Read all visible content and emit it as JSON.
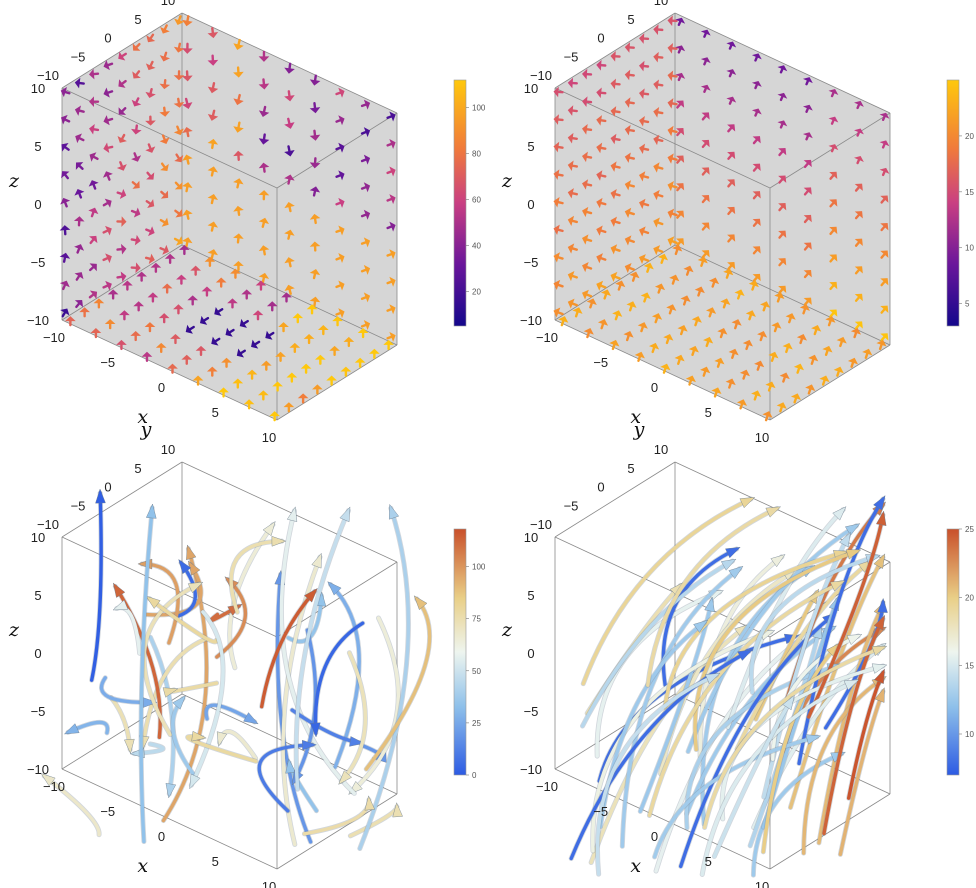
{
  "chart_data": [
    {
      "type": "vector-field-3d",
      "title": "",
      "xlabel": "x",
      "ylabel": "y",
      "zlabel": "z",
      "xlim": [
        -10,
        10
      ],
      "ylim": [
        -10,
        10
      ],
      "zlim": [
        -10,
        10
      ],
      "x_ticks": [
        "−10",
        "−5",
        "0",
        "5",
        "10"
      ],
      "y_ticks": [
        "−10",
        "−5",
        "0",
        "5",
        "10"
      ],
      "z_ticks": [
        "10",
        "5",
        "0",
        "−5",
        "−10"
      ],
      "slice_planes": [
        "x=-10 wall",
        "y=10 wall",
        "z=-10 floor"
      ],
      "colormap": "plasma (purple to yellow)",
      "colorbar_range": [
        5,
        112
      ],
      "colorbar_ticks": [
        "20",
        "40",
        "60",
        "80",
        "100"
      ],
      "colors": {
        "low": "#1c0b8c",
        "mid": "#c93f82",
        "high": "#ffc20a"
      }
    },
    {
      "type": "vector-field-3d",
      "title": "",
      "xlabel": "x",
      "ylabel": "y",
      "zlabel": "z",
      "xlim": [
        -10,
        10
      ],
      "ylim": [
        -10,
        10
      ],
      "zlim": [
        -10,
        10
      ],
      "x_ticks": [
        "−10",
        "−5",
        "0",
        "5",
        "10"
      ],
      "y_ticks": [
        "−10",
        "−5",
        "0",
        "5",
        "10"
      ],
      "z_ticks": [
        "10",
        "5",
        "0",
        "−5",
        "−10"
      ],
      "slice_planes": [
        "x=-10 wall",
        "y=10 wall",
        "z=-10 floor"
      ],
      "colormap": "plasma (purple to yellow)",
      "colorbar_range": [
        3,
        25
      ],
      "colorbar_ticks": [
        "5",
        "10",
        "15",
        "20"
      ],
      "colors": {
        "low": "#1c0b8c",
        "mid": "#c93f82",
        "high": "#ffc20a"
      }
    },
    {
      "type": "stream-tubes-3d",
      "title": "",
      "xlabel": "x",
      "ylabel": "y",
      "zlabel": "z",
      "xlim": [
        -10,
        10
      ],
      "ylim": [
        -10,
        10
      ],
      "zlim": [
        -10,
        10
      ],
      "x_ticks": [
        "−10",
        "−5",
        "0",
        "5",
        "10"
      ],
      "y_ticks": [
        "−10",
        "−5",
        "0",
        "5",
        "10"
      ],
      "z_ticks": [
        "10",
        "5",
        "0",
        "−5",
        "−10"
      ],
      "colormap": "blue-cream-orange",
      "colorbar_range": [
        0,
        118
      ],
      "colorbar_ticks": [
        "0",
        "25",
        "50",
        "75",
        "100"
      ],
      "colors": {
        "low": "#2d5be3",
        "mid": "#eaf1e8",
        "high": "#c9502a"
      }
    },
    {
      "type": "stream-tubes-3d",
      "title": "",
      "xlabel": "x",
      "ylabel": "y",
      "zlabel": "z",
      "xlim": [
        -10,
        10
      ],
      "ylim": [
        -10,
        10
      ],
      "zlim": [
        -10,
        10
      ],
      "x_ticks": [
        "−10",
        "−5",
        "0",
        "5",
        "10"
      ],
      "y_ticks": [
        "−10",
        "−5",
        "0",
        "5",
        "10"
      ],
      "z_ticks": [
        "10",
        "5",
        "0",
        "−5",
        "−10"
      ],
      "colormap": "blue-cream-orange",
      "colorbar_range": [
        7,
        25
      ],
      "colorbar_ticks": [
        "10",
        "15",
        "20",
        "25"
      ],
      "colors": {
        "low": "#2d5be3",
        "mid": "#eaf1e8",
        "high": "#c9502a"
      }
    }
  ]
}
